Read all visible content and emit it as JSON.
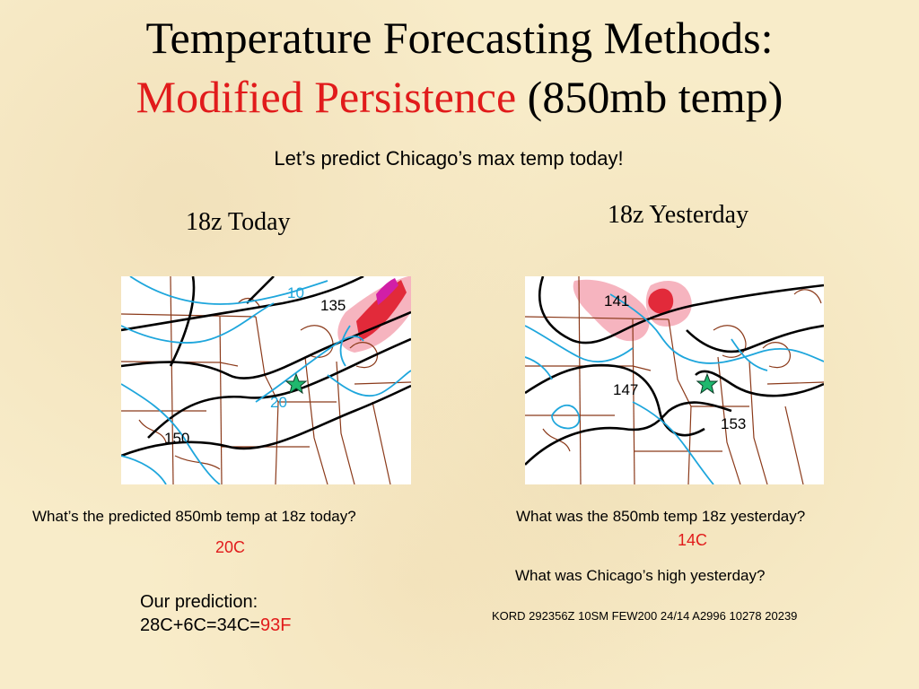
{
  "title": {
    "line1": "Temperature Forecasting Methods:",
    "line2_red": "Modified Persistence",
    "line2_rest": " (850mb temp)"
  },
  "subtitle": "Let’s predict Chicago’s max temp today!",
  "left": {
    "label": "18z Today",
    "map_labels": [
      "10",
      "135",
      "20",
      "150"
    ],
    "question": "What’s the predicted 850mb temp at 18z today?",
    "answer": "20C"
  },
  "right": {
    "label": "18z Yesterday",
    "map_labels": [
      "141",
      "147",
      "153"
    ],
    "question1": "What was the 850mb temp 18z yesterday?",
    "answer1": "14C",
    "question2": "What was Chicago’s high yesterday?",
    "metar": "KORD 292356Z 10SM FEW200 24/14 A2996 10278 20239"
  },
  "prediction": {
    "line1": "Our prediction:",
    "line2": "28C+6C=34C=",
    "line2_red": "93F"
  },
  "colors": {
    "accent_red": "#e11b1b",
    "isotherm_blue": "#1ea6dc",
    "border_brown": "#8b3a1a",
    "marker_green": "#1fb86e",
    "background": "#f8ecc9"
  }
}
